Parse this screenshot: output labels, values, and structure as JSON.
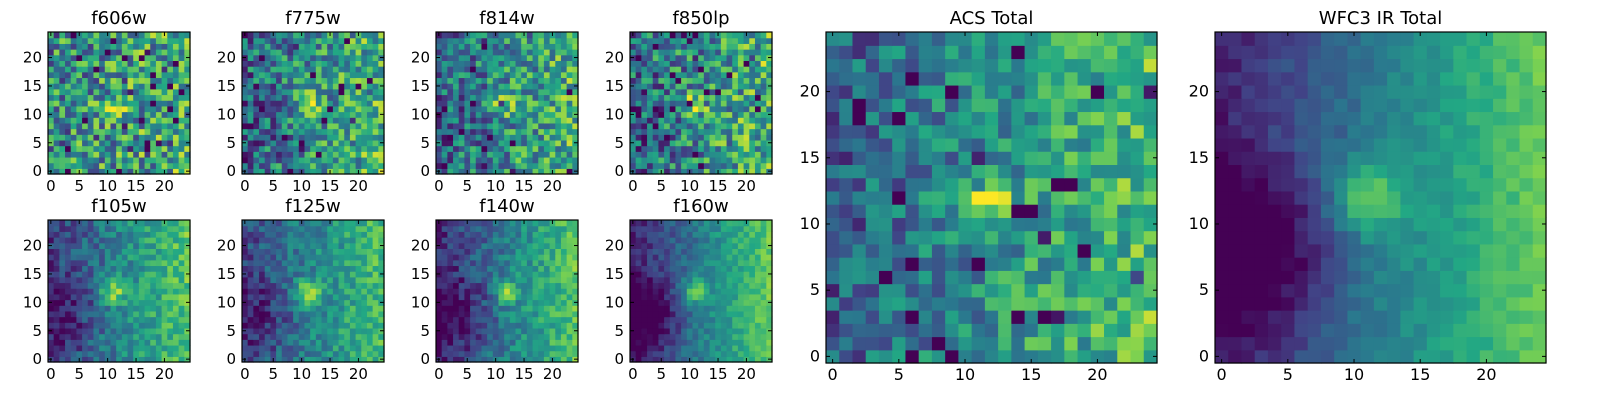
{
  "chart_data": {
    "type": "heatmap",
    "figure_title": "",
    "colormap": "viridis",
    "colormap_stops": [
      "#440154",
      "#414487",
      "#2a788e",
      "#22a884",
      "#7ad151",
      "#fde725"
    ],
    "grid_size": 25,
    "panels": [
      {
        "id": "f606w",
        "title": "f606w",
        "kind": "small",
        "seed": 11,
        "xlim": [
          0,
          24
        ],
        "ylim": [
          0,
          24
        ],
        "xticks": [
          0,
          5,
          10,
          15,
          20
        ],
        "yticks": [
          0,
          5,
          10,
          15,
          20
        ],
        "model": {
          "base": 0.55,
          "noise": 0.35,
          "gradient": 0.08,
          "source_amp": 0.25,
          "source_x": 11,
          "source_y": 11,
          "source_sigma": 1.3,
          "dark_corner": 0.0
        }
      },
      {
        "id": "f775w",
        "title": "f775w",
        "kind": "small",
        "seed": 12,
        "xlim": [
          0,
          24
        ],
        "ylim": [
          0,
          24
        ],
        "xticks": [
          0,
          5,
          10,
          15,
          20
        ],
        "yticks": [
          0,
          5,
          10,
          15,
          20
        ],
        "model": {
          "base": 0.5,
          "noise": 0.3,
          "gradient": 0.2,
          "source_amp": 0.4,
          "source_x": 11,
          "source_y": 12,
          "source_sigma": 1.4,
          "dark_corner": 0.05
        }
      },
      {
        "id": "f814w",
        "title": "f814w",
        "kind": "small",
        "seed": 13,
        "xlim": [
          0,
          24
        ],
        "ylim": [
          0,
          24
        ],
        "xticks": [
          0,
          5,
          10,
          15,
          20
        ],
        "yticks": [
          0,
          5,
          10,
          15,
          20
        ],
        "model": {
          "base": 0.5,
          "noise": 0.3,
          "gradient": 0.18,
          "source_amp": 0.4,
          "source_x": 11,
          "source_y": 12,
          "source_sigma": 1.3,
          "dark_corner": 0.05
        }
      },
      {
        "id": "f850lp",
        "title": "f850lp",
        "kind": "small",
        "seed": 14,
        "xlim": [
          0,
          24
        ],
        "ylim": [
          0,
          24
        ],
        "xticks": [
          0,
          5,
          10,
          15,
          20
        ],
        "yticks": [
          0,
          5,
          10,
          15,
          20
        ],
        "model": {
          "base": 0.5,
          "noise": 0.33,
          "gradient": 0.2,
          "source_amp": 0.4,
          "source_x": 11,
          "source_y": 12,
          "source_sigma": 1.3,
          "dark_corner": 0.05
        }
      },
      {
        "id": "f105w",
        "title": "f105w",
        "kind": "small",
        "seed": 21,
        "xlim": [
          0,
          24
        ],
        "ylim": [
          0,
          24
        ],
        "xticks": [
          0,
          5,
          10,
          15,
          20
        ],
        "yticks": [
          0,
          5,
          10,
          15,
          20
        ],
        "model": {
          "base": 0.45,
          "noise": 0.15,
          "gradient": 0.35,
          "source_amp": 0.4,
          "source_x": 11,
          "source_y": 12,
          "source_sigma": 1.6,
          "dark_corner": 0.2
        }
      },
      {
        "id": "f125w",
        "title": "f125w",
        "kind": "small",
        "seed": 22,
        "xlim": [
          0,
          24
        ],
        "ylim": [
          0,
          24
        ],
        "xticks": [
          0,
          5,
          10,
          15,
          20
        ],
        "yticks": [
          0,
          5,
          10,
          15,
          20
        ],
        "model": {
          "base": 0.45,
          "noise": 0.15,
          "gradient": 0.3,
          "source_amp": 0.4,
          "source_x": 11,
          "source_y": 12,
          "source_sigma": 1.6,
          "dark_corner": 0.2
        }
      },
      {
        "id": "f140w",
        "title": "f140w",
        "kind": "small",
        "seed": 23,
        "xlim": [
          0,
          24
        ],
        "ylim": [
          0,
          24
        ],
        "xticks": [
          0,
          5,
          10,
          15,
          20
        ],
        "yticks": [
          0,
          5,
          10,
          15,
          20
        ],
        "model": {
          "base": 0.42,
          "noise": 0.14,
          "gradient": 0.38,
          "source_amp": 0.4,
          "source_x": 12,
          "source_y": 12,
          "source_sigma": 1.4,
          "dark_corner": 0.25
        }
      },
      {
        "id": "f160w",
        "title": "f160w",
        "kind": "small",
        "seed": 24,
        "xlim": [
          0,
          24
        ],
        "ylim": [
          0,
          24
        ],
        "xticks": [
          0,
          5,
          10,
          15,
          20
        ],
        "yticks": [
          0,
          5,
          10,
          15,
          20
        ],
        "model": {
          "base": 0.42,
          "noise": 0.1,
          "gradient": 0.42,
          "source_amp": 0.4,
          "source_x": 11,
          "source_y": 12,
          "source_sigma": 1.4,
          "dark_corner": 0.3
        }
      },
      {
        "id": "acs-total",
        "title": "ACS Total",
        "kind": "large",
        "seed": 31,
        "xlim": [
          0,
          24
        ],
        "ylim": [
          0,
          24
        ],
        "xticks": [
          0,
          5,
          10,
          15,
          20
        ],
        "yticks": [
          0,
          5,
          10,
          15,
          20
        ],
        "model": {
          "base": 0.5,
          "noise": 0.22,
          "gradient": 0.25,
          "source_amp": 0.5,
          "source_x": 11.5,
          "source_y": 12,
          "source_sigma": 1.2,
          "dark_corner": 0.0
        }
      },
      {
        "id": "wfc3-ir-total",
        "title": "WFC3 IR Total",
        "kind": "large",
        "seed": 32,
        "xlim": [
          0,
          24
        ],
        "ylim": [
          0,
          24
        ],
        "xticks": [
          0,
          5,
          10,
          15,
          20
        ],
        "yticks": [
          0,
          5,
          10,
          15,
          20
        ],
        "model": {
          "base": 0.42,
          "noise": 0.06,
          "gradient": 0.42,
          "source_amp": 0.38,
          "source_x": 11,
          "source_y": 12,
          "source_sigma": 1.8,
          "dark_corner": 0.35
        }
      }
    ]
  }
}
